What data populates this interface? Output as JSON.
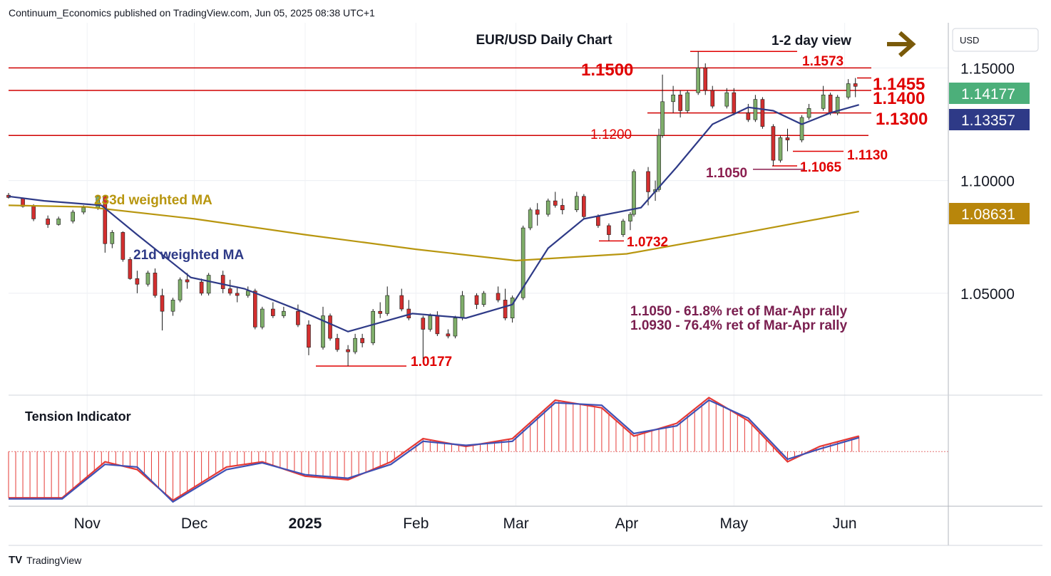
{
  "header": {
    "publisher": "Continuum_Economics published on TradingView.com, Jun 05, 2025 08:38 UTC+1"
  },
  "footer": {
    "brand": "TradingView",
    "logo": "TV"
  },
  "currency_button": "USD",
  "chart_data": [
    {
      "type": "candlestick",
      "title": "EUR/USD Daily Chart",
      "subtitle": "1-2 day view",
      "view_arrow": "right-arrow-icon",
      "ylim": [
        1.007,
        1.17
      ],
      "y_ticks": [
        "1.15000",
        "1.10000",
        "1.05000"
      ],
      "y_tick_values": [
        1.15,
        1.1,
        1.05
      ],
      "x_ticks": [
        "Nov",
        "Dec",
        "2025",
        "Feb",
        "Mar",
        "Apr",
        "May",
        "Jun"
      ],
      "x_tick_dates": [
        "2024-11-01",
        "2024-12-01",
        "2025-01-01",
        "2025-02-01",
        "2025-03-01",
        "2025-04-01",
        "2025-05-01",
        "2025-06-01"
      ],
      "x_range": [
        "2024-10-10",
        "2025-06-30"
      ],
      "price_labels": [
        {
          "label": "1.14177",
          "value": 1.14177,
          "color": "#4caf7a"
        },
        {
          "label": "1.13357",
          "value": 1.13357,
          "color": "#2e3a87"
        },
        {
          "label": "1.08631",
          "value": 1.08631,
          "color": "#b8860b"
        }
      ],
      "levels": [
        {
          "label": "1.1500",
          "value": 1.15,
          "color": "#e00000"
        },
        {
          "label": "1.1455",
          "value": 1.1455,
          "color": "#e00000"
        },
        {
          "label": "1.1400",
          "value": 1.14,
          "color": "#e00000"
        },
        {
          "label": "1.1300",
          "value": 1.13,
          "color": "#e00000"
        },
        {
          "label": "1.1200",
          "value": 1.12,
          "color": "#e00000"
        }
      ],
      "annotations": [
        {
          "label": "1.1573",
          "value": 1.1573,
          "date": "2025-04-21",
          "color": "#e00000"
        },
        {
          "label": "1.1130",
          "value": 1.113,
          "date": "2025-05-14",
          "color": "#e00000"
        },
        {
          "label": "1.1065",
          "value": 1.1065,
          "date": "2025-05-12",
          "color": "#e00000"
        },
        {
          "label": "1.1050",
          "value": 1.105,
          "date": "2025-05-12",
          "color": "#8b1e4f"
        },
        {
          "label": "1.0732",
          "value": 1.0732,
          "date": "2025-03-27",
          "color": "#e00000"
        },
        {
          "label": "1.0177",
          "value": 1.0177,
          "date": "2025-01-13",
          "color": "#e00000"
        }
      ],
      "notes": [
        "1.1050 - 61.8% ret of Mar-Apr rally",
        "1.0930 - 76.4% ret of Mar-Apr rally"
      ],
      "series": [
        {
          "name": "233d weighted MA",
          "color": "#b8960f",
          "points": [
            [
              "2024-10-10",
              1.089
            ],
            [
              "2024-11-01",
              1.0883
            ],
            [
              "2024-12-01",
              1.083
            ],
            [
              "2025-01-01",
              1.076
            ],
            [
              "2025-02-01",
              1.0695
            ],
            [
              "2025-03-01",
              1.0645
            ],
            [
              "2025-04-01",
              1.0675
            ],
            [
              "2025-05-01",
              1.076
            ],
            [
              "2025-06-05",
              1.0863
            ]
          ]
        },
        {
          "name": "21d weighted MA",
          "color": "#2e3a87",
          "points": [
            [
              "2024-10-10",
              1.093
            ],
            [
              "2024-10-20",
              1.091
            ],
            [
              "2024-11-05",
              1.089
            ],
            [
              "2024-11-15",
              1.076
            ],
            [
              "2024-11-30",
              1.057
            ],
            [
              "2024-12-15",
              1.052
            ],
            [
              "2024-12-31",
              1.042
            ],
            [
              "2025-01-13",
              1.033
            ],
            [
              "2025-01-31",
              1.041
            ],
            [
              "2025-02-15",
              1.039
            ],
            [
              "2025-02-28",
              1.045
            ],
            [
              "2025-03-10",
              1.07
            ],
            [
              "2025-03-20",
              1.083
            ],
            [
              "2025-04-05",
              1.088
            ],
            [
              "2025-04-15",
              1.106
            ],
            [
              "2025-04-25",
              1.125
            ],
            [
              "2025-05-05",
              1.1325
            ],
            [
              "2025-05-12",
              1.131
            ],
            [
              "2025-05-20",
              1.125
            ],
            [
              "2025-05-28",
              1.13
            ],
            [
              "2025-06-05",
              1.1336
            ]
          ]
        }
      ],
      "candles": [
        [
          "2024-10-10",
          1.0935,
          1.0945,
          1.092,
          1.0925
        ],
        [
          "2024-10-14",
          1.092,
          1.0925,
          1.088,
          1.0885
        ],
        [
          "2024-10-17",
          1.0885,
          1.0895,
          1.082,
          1.083
        ],
        [
          "2024-10-21",
          1.083,
          1.0845,
          1.079,
          1.0805
        ],
        [
          "2024-10-24",
          1.0805,
          1.084,
          1.08,
          1.083
        ],
        [
          "2024-10-28",
          1.082,
          1.087,
          1.081,
          1.086
        ],
        [
          "2024-10-31",
          1.086,
          1.089,
          1.085,
          1.088
        ],
        [
          "2024-11-04",
          1.088,
          1.0935,
          1.087,
          1.093
        ],
        [
          "2024-11-06",
          1.093,
          1.0935,
          1.068,
          1.072
        ],
        [
          "2024-11-08",
          1.072,
          1.078,
          1.07,
          1.077
        ],
        [
          "2024-11-11",
          1.077,
          1.0775,
          1.064,
          1.065
        ],
        [
          "2024-11-13",
          1.065,
          1.066,
          1.056,
          1.0565
        ],
        [
          "2024-11-15",
          1.0565,
          1.06,
          1.05,
          1.054
        ],
        [
          "2024-11-18",
          1.054,
          1.06,
          1.053,
          1.059
        ],
        [
          "2024-11-20",
          1.059,
          1.061,
          1.048,
          1.049
        ],
        [
          "2024-11-22",
          1.049,
          1.052,
          1.0335,
          1.042
        ],
        [
          "2024-11-25",
          1.042,
          1.048,
          1.04,
          1.047
        ],
        [
          "2024-11-27",
          1.047,
          1.057,
          1.046,
          1.056
        ],
        [
          "2024-11-29",
          1.056,
          1.059,
          1.052,
          1.055
        ],
        [
          "2024-12-03",
          1.055,
          1.0565,
          1.049,
          1.05
        ],
        [
          "2024-12-05",
          1.05,
          1.059,
          1.049,
          1.058
        ],
        [
          "2024-12-09",
          1.058,
          1.06,
          1.05,
          1.052
        ],
        [
          "2024-12-11",
          1.052,
          1.056,
          1.049,
          1.05
        ],
        [
          "2024-12-13",
          1.05,
          1.053,
          1.046,
          1.049
        ],
        [
          "2024-12-16",
          1.049,
          1.053,
          1.048,
          1.051
        ],
        [
          "2024-12-18",
          1.051,
          1.052,
          1.034,
          1.035
        ],
        [
          "2024-12-20",
          1.035,
          1.044,
          1.034,
          1.043
        ],
        [
          "2024-12-23",
          1.043,
          1.046,
          1.039,
          1.04
        ],
        [
          "2024-12-26",
          1.04,
          1.044,
          1.039,
          1.042
        ],
        [
          "2024-12-30",
          1.042,
          1.045,
          1.035,
          1.036
        ],
        [
          "2025-01-02",
          1.036,
          1.038,
          1.0225,
          1.026
        ],
        [
          "2025-01-06",
          1.026,
          1.044,
          1.025,
          1.04
        ],
        [
          "2025-01-08",
          1.04,
          1.041,
          1.029,
          1.03
        ],
        [
          "2025-01-10",
          1.03,
          1.032,
          1.024,
          1.025
        ],
        [
          "2025-01-13",
          1.025,
          1.027,
          1.0177,
          1.024
        ],
        [
          "2025-01-15",
          1.024,
          1.032,
          1.023,
          1.03
        ],
        [
          "2025-01-17",
          1.03,
          1.032,
          1.026,
          1.028
        ],
        [
          "2025-01-20",
          1.028,
          1.043,
          1.027,
          1.042
        ],
        [
          "2025-01-22",
          1.042,
          1.046,
          1.039,
          1.041
        ],
        [
          "2025-01-24",
          1.041,
          1.053,
          1.04,
          1.049
        ],
        [
          "2025-01-28",
          1.049,
          1.052,
          1.042,
          1.043
        ],
        [
          "2025-01-30",
          1.043,
          1.047,
          1.038,
          1.039
        ],
        [
          "2025-02-03",
          1.039,
          1.04,
          1.021,
          1.034
        ],
        [
          "2025-02-05",
          1.034,
          1.041,
          1.033,
          1.04
        ],
        [
          "2025-02-07",
          1.04,
          1.042,
          1.031,
          1.032
        ],
        [
          "2025-02-10",
          1.032,
          1.034,
          1.03,
          1.031
        ],
        [
          "2025-02-12",
          1.031,
          1.04,
          1.03,
          1.039
        ],
        [
          "2025-02-14",
          1.039,
          1.051,
          1.038,
          1.049
        ],
        [
          "2025-02-18",
          1.049,
          1.05,
          1.043,
          1.045
        ],
        [
          "2025-02-20",
          1.045,
          1.051,
          1.044,
          1.05
        ],
        [
          "2025-02-24",
          1.05,
          1.053,
          1.046,
          1.047
        ],
        [
          "2025-02-26",
          1.047,
          1.052,
          1.038,
          1.039
        ],
        [
          "2025-02-28",
          1.039,
          1.049,
          1.037,
          1.048
        ],
        [
          "2025-03-03",
          1.048,
          1.08,
          1.047,
          1.079
        ],
        [
          "2025-03-05",
          1.079,
          1.088,
          1.078,
          1.087
        ],
        [
          "2025-03-07",
          1.087,
          1.09,
          1.08,
          1.085
        ],
        [
          "2025-03-10",
          1.085,
          1.092,
          1.084,
          1.091
        ],
        [
          "2025-03-12",
          1.091,
          1.095,
          1.088,
          1.089
        ],
        [
          "2025-03-14",
          1.089,
          1.092,
          1.085,
          1.087
        ],
        [
          "2025-03-18",
          1.087,
          1.095,
          1.086,
          1.093
        ],
        [
          "2025-03-20",
          1.093,
          1.094,
          1.083,
          1.084
        ],
        [
          "2025-03-24",
          1.084,
          1.085,
          1.079,
          1.08
        ],
        [
          "2025-03-27",
          1.08,
          1.081,
          1.0732,
          1.076
        ],
        [
          "2025-03-31",
          1.076,
          1.083,
          1.075,
          1.082
        ],
        [
          "2025-04-02",
          1.082,
          1.086,
          1.078,
          1.085
        ],
        [
          "2025-04-03",
          1.085,
          1.105,
          1.084,
          1.104
        ],
        [
          "2025-04-07",
          1.104,
          1.106,
          1.089,
          1.095
        ],
        [
          "2025-04-09",
          1.095,
          1.1,
          1.091,
          1.096
        ],
        [
          "2025-04-10",
          1.096,
          1.123,
          1.095,
          1.12
        ],
        [
          "2025-04-11",
          1.12,
          1.147,
          1.119,
          1.135
        ],
        [
          "2025-04-14",
          1.135,
          1.142,
          1.13,
          1.138
        ],
        [
          "2025-04-16",
          1.138,
          1.14,
          1.128,
          1.131
        ],
        [
          "2025-04-18",
          1.131,
          1.14,
          1.13,
          1.139
        ],
        [
          "2025-04-21",
          1.139,
          1.1573,
          1.138,
          1.15
        ],
        [
          "2025-04-23",
          1.15,
          1.152,
          1.138,
          1.14
        ],
        [
          "2025-04-25",
          1.14,
          1.142,
          1.132,
          1.133
        ],
        [
          "2025-04-29",
          1.133,
          1.141,
          1.132,
          1.139
        ],
        [
          "2025-05-01",
          1.139,
          1.141,
          1.129,
          1.13
        ],
        [
          "2025-05-05",
          1.13,
          1.134,
          1.126,
          1.127
        ],
        [
          "2025-05-07",
          1.127,
          1.138,
          1.126,
          1.136
        ],
        [
          "2025-05-09",
          1.136,
          1.137,
          1.123,
          1.124
        ],
        [
          "2025-05-12",
          1.124,
          1.125,
          1.1065,
          1.109
        ],
        [
          "2025-05-14",
          1.109,
          1.12,
          1.108,
          1.119
        ],
        [
          "2025-05-16",
          1.119,
          1.123,
          1.113,
          1.118
        ],
        [
          "2025-05-20",
          1.118,
          1.129,
          1.117,
          1.128
        ],
        [
          "2025-05-22",
          1.128,
          1.134,
          1.127,
          1.132
        ],
        [
          "2025-05-26",
          1.132,
          1.142,
          1.131,
          1.138
        ],
        [
          "2025-05-28",
          1.138,
          1.139,
          1.129,
          1.13
        ],
        [
          "2025-05-30",
          1.13,
          1.138,
          1.129,
          1.137
        ],
        [
          "2025-06-02",
          1.137,
          1.145,
          1.136,
          1.143
        ],
        [
          "2025-06-04",
          1.143,
          1.1455,
          1.137,
          1.1418
        ]
      ]
    },
    {
      "type": "line",
      "title": "Tension Indicator",
      "ylim": [
        -1.05,
        1.0
      ],
      "baseline": 0.0,
      "series": [
        {
          "name": "",
          "color": "#e53935",
          "points": [
            [
              "2024-10-10",
              -0.9
            ],
            [
              "2024-10-25",
              -0.9
            ],
            [
              "2024-11-06",
              -0.2
            ],
            [
              "2024-11-15",
              -0.35
            ],
            [
              "2024-11-25",
              -0.95
            ],
            [
              "2024-12-10",
              -0.3
            ],
            [
              "2024-12-20",
              -0.2
            ],
            [
              "2025-01-01",
              -0.48
            ],
            [
              "2025-01-13",
              -0.55
            ],
            [
              "2025-01-25",
              -0.2
            ],
            [
              "2025-02-03",
              0.25
            ],
            [
              "2025-02-15",
              0.1
            ],
            [
              "2025-02-28",
              0.25
            ],
            [
              "2025-03-12",
              1.0
            ],
            [
              "2025-03-25",
              0.85
            ],
            [
              "2025-04-03",
              0.3
            ],
            [
              "2025-04-15",
              0.55
            ],
            [
              "2025-04-24",
              1.05
            ],
            [
              "2025-05-05",
              0.6
            ],
            [
              "2025-05-16",
              -0.2
            ],
            [
              "2025-05-25",
              0.1
            ],
            [
              "2025-06-05",
              0.3
            ]
          ]
        },
        {
          "name": "",
          "color": "#3f51b5",
          "points": [
            [
              "2024-10-10",
              -0.92
            ],
            [
              "2024-10-25",
              -0.92
            ],
            [
              "2024-11-06",
              -0.25
            ],
            [
              "2024-11-15",
              -0.3
            ],
            [
              "2024-11-25",
              -0.98
            ],
            [
              "2024-12-10",
              -0.35
            ],
            [
              "2024-12-20",
              -0.22
            ],
            [
              "2025-01-01",
              -0.45
            ],
            [
              "2025-01-13",
              -0.52
            ],
            [
              "2025-01-25",
              -0.25
            ],
            [
              "2025-02-03",
              0.2
            ],
            [
              "2025-02-15",
              0.12
            ],
            [
              "2025-02-28",
              0.2
            ],
            [
              "2025-03-12",
              0.95
            ],
            [
              "2025-03-25",
              0.9
            ],
            [
              "2025-04-03",
              0.35
            ],
            [
              "2025-04-15",
              0.5
            ],
            [
              "2025-04-24",
              1.0
            ],
            [
              "2025-05-05",
              0.65
            ],
            [
              "2025-05-16",
              -0.15
            ],
            [
              "2025-05-25",
              0.05
            ],
            [
              "2025-06-05",
              0.27
            ]
          ]
        }
      ]
    }
  ]
}
